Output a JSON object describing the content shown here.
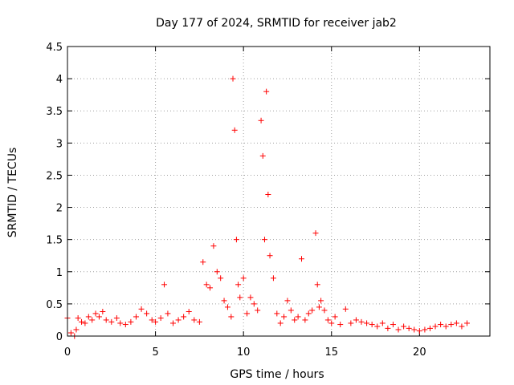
{
  "chart_data": {
    "type": "scatter",
    "title": "Day 177 of 2024, SRMTID for receiver jab2",
    "xlabel": "GPS time / hours",
    "ylabel": "SRMTID / TECUs",
    "xlim": [
      0,
      24
    ],
    "ylim": [
      0,
      4.5
    ],
    "x_ticks": [
      0,
      5,
      10,
      15,
      20
    ],
    "x_tick_labels": [
      "0",
      "5",
      "10",
      "15",
      "20"
    ],
    "y_ticks": [
      0,
      0.5,
      1,
      1.5,
      2,
      2.5,
      3,
      3.5,
      4,
      4.5
    ],
    "y_tick_labels": [
      "0",
      "0.5",
      "1",
      "1.5",
      "2",
      "2.5",
      "3",
      "3.5",
      "4",
      "4.5"
    ],
    "grid": true,
    "marker": "+",
    "color": "#ff0000",
    "series": [
      {
        "name": "SRMTID",
        "x": [
          0.0,
          0.2,
          0.4,
          0.5,
          0.6,
          0.8,
          1.0,
          1.2,
          1.4,
          1.6,
          1.8,
          2.0,
          2.2,
          2.5,
          2.8,
          3.0,
          3.3,
          3.6,
          3.9,
          4.2,
          4.5,
          4.8,
          5.0,
          5.3,
          5.5,
          5.7,
          6.0,
          6.3,
          6.6,
          6.9,
          7.2,
          7.5,
          7.7,
          7.9,
          8.1,
          8.3,
          8.5,
          8.7,
          8.9,
          9.1,
          9.3,
          9.4,
          9.5,
          9.6,
          9.7,
          9.8,
          10.0,
          10.2,
          10.4,
          10.6,
          10.8,
          11.0,
          11.1,
          11.2,
          11.3,
          11.4,
          11.5,
          11.7,
          11.9,
          12.1,
          12.3,
          12.5,
          12.7,
          12.9,
          13.1,
          13.3,
          13.5,
          13.7,
          13.9,
          14.1,
          14.2,
          14.3,
          14.4,
          14.6,
          14.8,
          15.0,
          15.2,
          15.5,
          15.8,
          16.1,
          16.4,
          16.7,
          17.0,
          17.3,
          17.6,
          17.9,
          18.2,
          18.5,
          18.8,
          19.1,
          19.4,
          19.7,
          20.0,
          20.3,
          20.6,
          20.9,
          21.2,
          21.5,
          21.8,
          22.1,
          22.4,
          22.7
        ],
        "y": [
          0.28,
          0.05,
          0.0,
          0.1,
          0.28,
          0.22,
          0.2,
          0.3,
          0.25,
          0.35,
          0.3,
          0.38,
          0.25,
          0.22,
          0.28,
          0.2,
          0.18,
          0.22,
          0.3,
          0.42,
          0.35,
          0.25,
          0.22,
          0.28,
          0.8,
          0.35,
          0.2,
          0.25,
          0.3,
          0.38,
          0.25,
          0.22,
          1.15,
          0.8,
          0.75,
          1.4,
          1.0,
          0.9,
          0.55,
          0.45,
          0.3,
          4.0,
          3.2,
          1.5,
          0.8,
          0.6,
          0.9,
          0.35,
          0.6,
          0.5,
          0.4,
          3.35,
          2.8,
          1.5,
          3.8,
          2.2,
          1.25,
          0.9,
          0.35,
          0.2,
          0.3,
          0.55,
          0.4,
          0.25,
          0.3,
          1.2,
          0.25,
          0.35,
          0.4,
          1.6,
          0.8,
          0.45,
          0.55,
          0.4,
          0.25,
          0.2,
          0.3,
          0.18,
          0.42,
          0.2,
          0.25,
          0.22,
          0.2,
          0.18,
          0.15,
          0.2,
          0.12,
          0.18,
          0.1,
          0.15,
          0.12,
          0.1,
          0.08,
          0.1,
          0.12,
          0.15,
          0.18,
          0.15,
          0.18,
          0.2,
          0.15,
          0.2
        ]
      }
    ]
  }
}
